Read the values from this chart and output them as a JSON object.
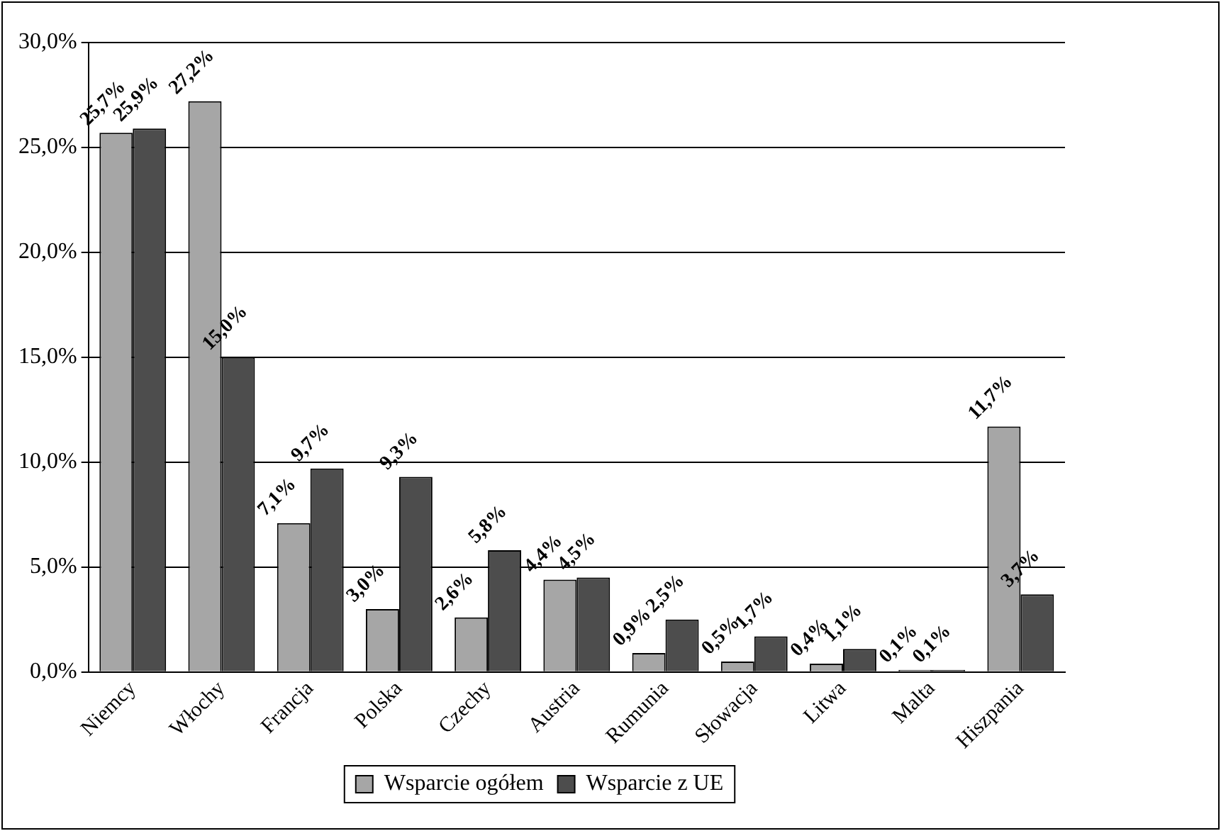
{
  "chart_data": {
    "type": "bar",
    "categories": [
      "Niemcy",
      "Włochy",
      "Francja",
      "Polska",
      "Czechy",
      "Austria",
      "Rumunia",
      "Słowacja",
      "Litwa",
      "Malta",
      "Hiszpania"
    ],
    "series": [
      {
        "name": "Wsparcie ogółem",
        "color": "#a6a6a6",
        "values": [
          25.7,
          27.2,
          7.1,
          3.0,
          2.6,
          4.4,
          0.9,
          0.5,
          0.4,
          0.1,
          11.7
        ],
        "value_labels": [
          "25,7%",
          "27,2%",
          "7,1%",
          "3,0%",
          "2,6%",
          "4,4%",
          "0,9%",
          "0,5%",
          "0,4%",
          "0,1%",
          "11,7%"
        ]
      },
      {
        "name": "Wsparcie z UE",
        "color": "#4d4d4d",
        "values": [
          25.9,
          15.0,
          9.7,
          9.3,
          5.8,
          4.5,
          2.5,
          1.7,
          1.1,
          0.1,
          3.7
        ],
        "value_labels": [
          "25,9%",
          "15,0%",
          "9,7%",
          "9,3%",
          "5,8%",
          "4,5%",
          "2,5%",
          "1,7%",
          "1,1%",
          "0,1%",
          "3,7%"
        ]
      }
    ],
    "ylim": [
      0,
      30
    ],
    "yticks": [
      {
        "value": 0,
        "label": "0,0%"
      },
      {
        "value": 5,
        "label": "5,0%"
      },
      {
        "value": 10,
        "label": "10,0%"
      },
      {
        "value": 15,
        "label": "15,0%"
      },
      {
        "value": 20,
        "label": "20,0%"
      },
      {
        "value": 25,
        "label": "25,0%"
      },
      {
        "value": 30,
        "label": "30,0%"
      }
    ],
    "grid": "y",
    "legend": "bottom"
  }
}
